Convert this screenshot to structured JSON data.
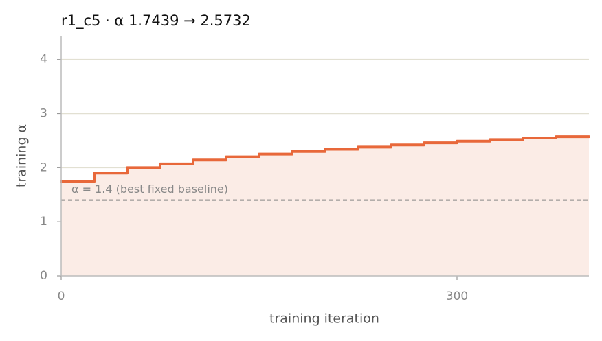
{
  "chart_data": {
    "type": "step",
    "title": "r1_c5   ·   α 1.7439 → 2.5732",
    "x_label": "training iteration",
    "y_label": "training α",
    "x": [
      0,
      25,
      50,
      75,
      100,
      125,
      150,
      175,
      200,
      225,
      250,
      275,
      300,
      325,
      350,
      375
    ],
    "values": [
      1.7439,
      1.9,
      2.0,
      2.07,
      2.14,
      2.2,
      2.25,
      2.3,
      2.34,
      2.38,
      2.42,
      2.46,
      2.49,
      2.52,
      2.55,
      2.5732
    ],
    "color": "#e8683a",
    "fill_color": "#fbece6",
    "xlim": [
      0,
      400
    ],
    "ylim": [
      0,
      4.44
    ],
    "xticks": [
      0,
      300
    ],
    "yticks": [
      0,
      1,
      2,
      3,
      4
    ],
    "grid": true,
    "baseline": {
      "value": 1.4,
      "label": "α = 1.4 (best fixed baseline)",
      "color": "#888888"
    }
  }
}
